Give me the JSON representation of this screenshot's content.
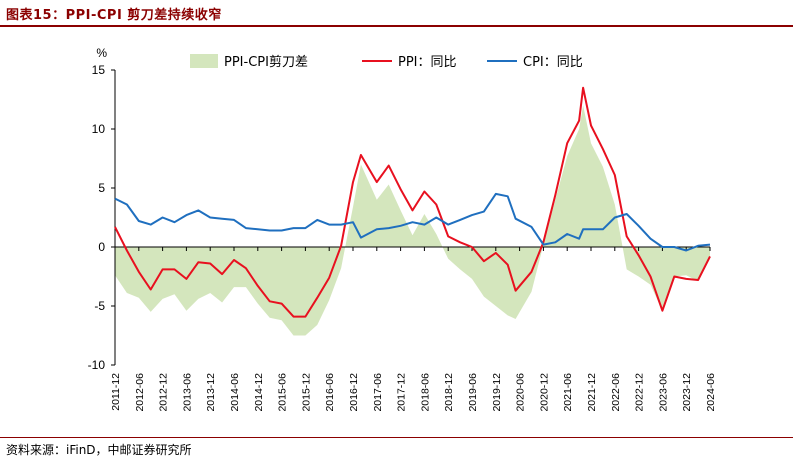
{
  "header": {
    "title": "图表15：PPI-CPI 剪刀差持续收窄"
  },
  "footer": {
    "source": "资料来源：iFinD，中邮证券研究所"
  },
  "colors": {
    "spread": "#d4e6bd",
    "ppi": "#e8101f",
    "cpi": "#1f6fbf",
    "accent": "#8b0000"
  },
  "chart_data": {
    "type": "line",
    "title": "",
    "ylabel": "%",
    "ylim": [
      -10,
      15
    ],
    "yticks": [
      15,
      10,
      5,
      0,
      -5,
      -10
    ],
    "x_start": "2011-12",
    "x_end": "2024-06",
    "xticks": [
      "2011-12",
      "2012-06",
      "2012-12",
      "2013-06",
      "2013-12",
      "2014-06",
      "2014-12",
      "2015-06",
      "2015-12",
      "2016-06",
      "2016-12",
      "2017-06",
      "2017-12",
      "2018-06",
      "2018-12",
      "2019-06",
      "2019-12",
      "2020-06",
      "2020-12",
      "2021-06",
      "2021-12",
      "2022-06",
      "2022-12",
      "2023-06",
      "2023-12",
      "2024-06"
    ],
    "legend": [
      "PPI-CPI剪刀差",
      "PPI：同比",
      "CPI：同比"
    ],
    "series": [
      {
        "name": "PPI：同比",
        "kind": "line",
        "points": [
          [
            "2011-12",
            1.7
          ],
          [
            "2012-03",
            -0.3
          ],
          [
            "2012-06",
            -2.1
          ],
          [
            "2012-09",
            -3.6
          ],
          [
            "2012-12",
            -1.9
          ],
          [
            "2013-03",
            -1.9
          ],
          [
            "2013-06",
            -2.7
          ],
          [
            "2013-09",
            -1.3
          ],
          [
            "2013-12",
            -1.4
          ],
          [
            "2014-03",
            -2.3
          ],
          [
            "2014-06",
            -1.1
          ],
          [
            "2014-09",
            -1.8
          ],
          [
            "2014-12",
            -3.3
          ],
          [
            "2015-03",
            -4.6
          ],
          [
            "2015-06",
            -4.8
          ],
          [
            "2015-09",
            -5.9
          ],
          [
            "2015-12",
            -5.9
          ],
          [
            "2016-03",
            -4.3
          ],
          [
            "2016-06",
            -2.6
          ],
          [
            "2016-09",
            0.1
          ],
          [
            "2016-12",
            5.5
          ],
          [
            "2017-02",
            7.8
          ],
          [
            "2017-06",
            5.5
          ],
          [
            "2017-09",
            6.9
          ],
          [
            "2017-12",
            4.9
          ],
          [
            "2018-03",
            3.1
          ],
          [
            "2018-06",
            4.7
          ],
          [
            "2018-09",
            3.6
          ],
          [
            "2018-12",
            0.9
          ],
          [
            "2019-03",
            0.4
          ],
          [
            "2019-06",
            0.0
          ],
          [
            "2019-09",
            -1.2
          ],
          [
            "2019-12",
            -0.5
          ],
          [
            "2020-03",
            -1.5
          ],
          [
            "2020-05",
            -3.7
          ],
          [
            "2020-09",
            -2.1
          ],
          [
            "2020-12",
            0.4
          ],
          [
            "2021-03",
            4.4
          ],
          [
            "2021-06",
            8.8
          ],
          [
            "2021-09",
            10.7
          ],
          [
            "2021-10",
            13.5
          ],
          [
            "2021-12",
            10.3
          ],
          [
            "2022-03",
            8.3
          ],
          [
            "2022-06",
            6.1
          ],
          [
            "2022-09",
            0.9
          ],
          [
            "2022-12",
            -0.7
          ],
          [
            "2023-03",
            -2.5
          ],
          [
            "2023-06",
            -5.4
          ],
          [
            "2023-09",
            -2.5
          ],
          [
            "2023-12",
            -2.7
          ],
          [
            "2024-03",
            -2.8
          ],
          [
            "2024-06",
            -0.8
          ]
        ]
      },
      {
        "name": "CPI：同比",
        "kind": "line",
        "points": [
          [
            "2011-12",
            4.1
          ],
          [
            "2012-03",
            3.6
          ],
          [
            "2012-06",
            2.2
          ],
          [
            "2012-09",
            1.9
          ],
          [
            "2012-12",
            2.5
          ],
          [
            "2013-03",
            2.1
          ],
          [
            "2013-06",
            2.7
          ],
          [
            "2013-09",
            3.1
          ],
          [
            "2013-12",
            2.5
          ],
          [
            "2014-03",
            2.4
          ],
          [
            "2014-06",
            2.3
          ],
          [
            "2014-09",
            1.6
          ],
          [
            "2014-12",
            1.5
          ],
          [
            "2015-03",
            1.4
          ],
          [
            "2015-06",
            1.4
          ],
          [
            "2015-09",
            1.6
          ],
          [
            "2015-12",
            1.6
          ],
          [
            "2016-03",
            2.3
          ],
          [
            "2016-06",
            1.9
          ],
          [
            "2016-09",
            1.9
          ],
          [
            "2016-12",
            2.1
          ],
          [
            "2017-02",
            0.8
          ],
          [
            "2017-06",
            1.5
          ],
          [
            "2017-09",
            1.6
          ],
          [
            "2017-12",
            1.8
          ],
          [
            "2018-03",
            2.1
          ],
          [
            "2018-06",
            1.9
          ],
          [
            "2018-09",
            2.5
          ],
          [
            "2018-12",
            1.9
          ],
          [
            "2019-03",
            2.3
          ],
          [
            "2019-06",
            2.7
          ],
          [
            "2019-09",
            3.0
          ],
          [
            "2019-12",
            4.5
          ],
          [
            "2020-03",
            4.3
          ],
          [
            "2020-05",
            2.4
          ],
          [
            "2020-09",
            1.7
          ],
          [
            "2020-12",
            0.2
          ],
          [
            "2021-03",
            0.4
          ],
          [
            "2021-06",
            1.1
          ],
          [
            "2021-09",
            0.7
          ],
          [
            "2021-10",
            1.5
          ],
          [
            "2021-12",
            1.5
          ],
          [
            "2022-03",
            1.5
          ],
          [
            "2022-06",
            2.5
          ],
          [
            "2022-09",
            2.8
          ],
          [
            "2022-12",
            1.8
          ],
          [
            "2023-03",
            0.7
          ],
          [
            "2023-06",
            0.0
          ],
          [
            "2023-09",
            0.0
          ],
          [
            "2023-12",
            -0.3
          ],
          [
            "2024-03",
            0.1
          ],
          [
            "2024-06",
            0.2
          ]
        ]
      },
      {
        "name": "PPI-CPI剪刀差",
        "kind": "area",
        "points": [
          [
            "2011-12",
            -2.4
          ],
          [
            "2012-03",
            -3.9
          ],
          [
            "2012-06",
            -4.3
          ],
          [
            "2012-09",
            -5.5
          ],
          [
            "2012-12",
            -4.4
          ],
          [
            "2013-03",
            -4.0
          ],
          [
            "2013-06",
            -5.4
          ],
          [
            "2013-09",
            -4.4
          ],
          [
            "2013-12",
            -3.9
          ],
          [
            "2014-03",
            -4.7
          ],
          [
            "2014-06",
            -3.4
          ],
          [
            "2014-09",
            -3.4
          ],
          [
            "2014-12",
            -4.8
          ],
          [
            "2015-03",
            -6.0
          ],
          [
            "2015-06",
            -6.2
          ],
          [
            "2015-09",
            -7.5
          ],
          [
            "2015-12",
            -7.5
          ],
          [
            "2016-03",
            -6.6
          ],
          [
            "2016-06",
            -4.5
          ],
          [
            "2016-09",
            -1.8
          ],
          [
            "2016-12",
            3.4
          ],
          [
            "2017-02",
            7.0
          ],
          [
            "2017-06",
            4.0
          ],
          [
            "2017-09",
            5.3
          ],
          [
            "2017-12",
            3.1
          ],
          [
            "2018-03",
            1.0
          ],
          [
            "2018-06",
            2.8
          ],
          [
            "2018-09",
            1.1
          ],
          [
            "2018-12",
            -1.0
          ],
          [
            "2019-03",
            -1.9
          ],
          [
            "2019-06",
            -2.7
          ],
          [
            "2019-09",
            -4.2
          ],
          [
            "2019-12",
            -5.0
          ],
          [
            "2020-03",
            -5.8
          ],
          [
            "2020-05",
            -6.1
          ],
          [
            "2020-09",
            -3.8
          ],
          [
            "2020-12",
            0.2
          ],
          [
            "2021-03",
            4.0
          ],
          [
            "2021-06",
            7.7
          ],
          [
            "2021-09",
            10.0
          ],
          [
            "2021-10",
            12.0
          ],
          [
            "2021-12",
            8.8
          ],
          [
            "2022-03",
            6.8
          ],
          [
            "2022-06",
            3.6
          ],
          [
            "2022-09",
            -1.9
          ],
          [
            "2022-12",
            -2.5
          ],
          [
            "2023-03",
            -3.2
          ],
          [
            "2023-06",
            -5.4
          ],
          [
            "2023-09",
            -2.5
          ],
          [
            "2023-12",
            -2.4
          ],
          [
            "2024-03",
            -2.9
          ],
          [
            "2024-06",
            -1.0
          ]
        ]
      }
    ]
  }
}
